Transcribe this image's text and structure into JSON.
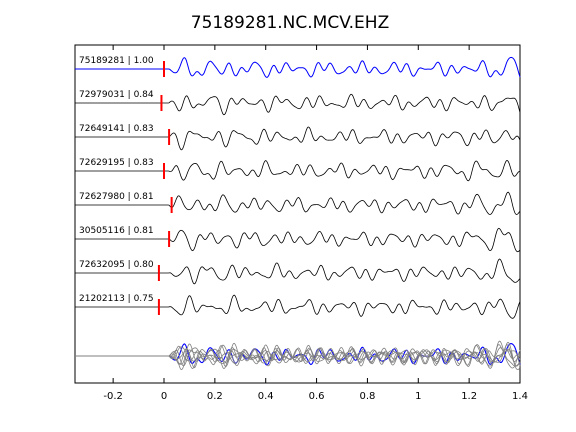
{
  "chart_data": {
    "type": "line",
    "title": "75189281.NC.MCV.EHZ",
    "xlabel": "",
    "ylabel": "",
    "xlim": [
      -0.35,
      1.4
    ],
    "xticks": [
      -0.2,
      0,
      0.2,
      0.4,
      0.6,
      0.8,
      1,
      1.2,
      1.4
    ],
    "xtick_labels": [
      "-0.2",
      "0",
      "0.2",
      "0.4",
      "0.6",
      "0.8",
      "1",
      "1.2",
      "1.4"
    ],
    "grid": false,
    "colors": {
      "template": "#0000ff",
      "trace": "#000000",
      "pick": "#ff0000",
      "stack": "#808080"
    },
    "traces": [
      {
        "label": "75189281 | 1.00",
        "pick_time": 0.0,
        "template": true,
        "seed": 1
      },
      {
        "label": "72979031 | 0.84",
        "pick_time": -0.01,
        "template": false,
        "seed": 2
      },
      {
        "label": "72649141 | 0.83",
        "pick_time": 0.02,
        "template": false,
        "seed": 3
      },
      {
        "label": "72629195 | 0.83",
        "pick_time": 0.0,
        "template": false,
        "seed": 4
      },
      {
        "label": "72627980 | 0.81",
        "pick_time": 0.03,
        "template": false,
        "seed": 5
      },
      {
        "label": "30505116 | 0.81",
        "pick_time": 0.02,
        "template": false,
        "seed": 6
      },
      {
        "label": "72632095 | 0.80",
        "pick_time": -0.02,
        "template": false,
        "seed": 7
      },
      {
        "label": "21202113 | 0.75",
        "pick_time": -0.02,
        "template": false,
        "seed": 8
      }
    ],
    "stack": {
      "description_hidden": true
    }
  }
}
